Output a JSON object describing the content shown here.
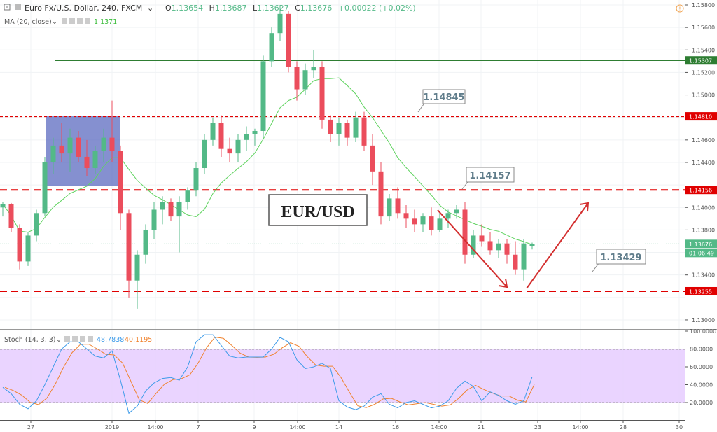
{
  "header": {
    "symbol": "Euro Fx/U.S. Dollar, 240, FXCM",
    "open_label": "O",
    "open": "1.13654",
    "high_label": "H",
    "high": "1.13687",
    "low_label": "L",
    "low": "1.13627",
    "close_label": "C",
    "close": "1.13676",
    "change": "+0.00022 (+0.02%)"
  },
  "ma": {
    "label": "MA (20, close)",
    "value": "1.1371"
  },
  "stoch": {
    "label": "Stoch (14, 3, 3)",
    "k_value": "48.7838",
    "d_value": "40.1195"
  },
  "price_axis": [
    "1.15800",
    "1.15600",
    "1.15400",
    "1.15200",
    "1.15000",
    "1.14600",
    "1.14400",
    "1.14000",
    "1.13800",
    "1.13400",
    "1.13000"
  ],
  "price_tags": {
    "green_line": "1.15307",
    "red1": "1.14810",
    "red2": "1.14156",
    "last": "1.13676",
    "countdown": "01:06:49",
    "red3": "1.13255"
  },
  "stoch_axis": [
    "100.0000",
    "80.0000",
    "60.0000",
    "40.0000",
    "20.0000"
  ],
  "time_axis": [
    "27",
    "2019",
    "14:00",
    "7",
    "9",
    "14:00",
    "14",
    "16",
    "14:00",
    "21",
    "23",
    "14:00",
    "28",
    "30"
  ],
  "annotations": {
    "callout1": "1.14845",
    "callout2": "1.14157",
    "callout3": "1.13429",
    "pair": "EUR/USD"
  },
  "colors": {
    "up": "#53b987",
    "down": "#eb4d5c",
    "ma": "#5fd35f",
    "support": "#e00000",
    "resistance": "#2e7d32",
    "stoch_k": "#3d9be9",
    "stoch_d": "#f0822d",
    "stoch_band": "#e6ccff"
  },
  "chart_data": {
    "type": "candlestick",
    "title": "Euro Fx/U.S. Dollar, 240, FXCM",
    "ylim": [
      1.129,
      1.1585
    ],
    "levels": {
      "resistance": 1.15307,
      "dashed": [
        1.1481,
        1.14156,
        1.13255
      ],
      "last": 1.13676
    },
    "ohlc": [
      [
        1.14,
        1.1405,
        1.1392,
        1.1403
      ],
      [
        1.1403,
        1.1404,
        1.1378,
        1.1382
      ],
      [
        1.1382,
        1.1385,
        1.1345,
        1.1352
      ],
      [
        1.1352,
        1.1378,
        1.1348,
        1.1375
      ],
      [
        1.1375,
        1.1398,
        1.137,
        1.1395
      ],
      [
        1.1395,
        1.1445,
        1.1392,
        1.144
      ],
      [
        1.144,
        1.1462,
        1.143,
        1.1455
      ],
      [
        1.1455,
        1.1475,
        1.144,
        1.1448
      ],
      [
        1.1448,
        1.147,
        1.1432,
        1.1462
      ],
      [
        1.1462,
        1.1468,
        1.144,
        1.1445
      ],
      [
        1.1445,
        1.146,
        1.1428,
        1.1435
      ],
      [
        1.1435,
        1.1455,
        1.143,
        1.145
      ],
      [
        1.145,
        1.147,
        1.144,
        1.1462
      ],
      [
        1.1462,
        1.1495,
        1.144,
        1.145
      ],
      [
        1.145,
        1.1455,
        1.138,
        1.1395
      ],
      [
        1.1395,
        1.1398,
        1.132,
        1.1335
      ],
      [
        1.1335,
        1.1362,
        1.131,
        1.1358
      ],
      [
        1.1358,
        1.1385,
        1.135,
        1.138
      ],
      [
        1.138,
        1.1405,
        1.1372,
        1.1398
      ],
      [
        1.1398,
        1.141,
        1.1385,
        1.1405
      ],
      [
        1.1405,
        1.1408,
        1.1388,
        1.1392
      ],
      [
        1.1392,
        1.141,
        1.136,
        1.1405
      ],
      [
        1.1405,
        1.1418,
        1.1398,
        1.1415
      ],
      [
        1.1415,
        1.144,
        1.141,
        1.1435
      ],
      [
        1.1435,
        1.1465,
        1.143,
        1.146
      ],
      [
        1.146,
        1.148,
        1.1455,
        1.1475
      ],
      [
        1.1475,
        1.1482,
        1.1445,
        1.1452
      ],
      [
        1.1452,
        1.1462,
        1.144,
        1.1448
      ],
      [
        1.1448,
        1.1465,
        1.144,
        1.146
      ],
      [
        1.146,
        1.1472,
        1.145,
        1.1465
      ],
      [
        1.1465,
        1.147,
        1.1455,
        1.1468
      ],
      [
        1.1468,
        1.1535,
        1.1462,
        1.153
      ],
      [
        1.153,
        1.156,
        1.1525,
        1.1555
      ],
      [
        1.1555,
        1.158,
        1.1548,
        1.1572
      ],
      [
        1.1572,
        1.1575,
        1.152,
        1.1525
      ],
      [
        1.1525,
        1.153,
        1.1495,
        1.1505
      ],
      [
        1.1505,
        1.1528,
        1.15,
        1.1522
      ],
      [
        1.1522,
        1.154,
        1.1515,
        1.1525
      ],
      [
        1.1525,
        1.153,
        1.147,
        1.1478
      ],
      [
        1.1478,
        1.1482,
        1.1458,
        1.1465
      ],
      [
        1.1465,
        1.148,
        1.1455,
        1.1475
      ],
      [
        1.1475,
        1.1478,
        1.1455,
        1.1462
      ],
      [
        1.1462,
        1.1485,
        1.1458,
        1.148
      ],
      [
        1.148,
        1.1485,
        1.145,
        1.1455
      ],
      [
        1.1455,
        1.1465,
        1.142,
        1.1432
      ],
      [
        1.1432,
        1.144,
        1.1385,
        1.1392
      ],
      [
        1.1392,
        1.1412,
        1.1388,
        1.1408
      ],
      [
        1.1408,
        1.1418,
        1.139,
        1.1395
      ],
      [
        1.1395,
        1.1402,
        1.1382,
        1.139
      ],
      [
        1.139,
        1.1398,
        1.1378,
        1.1385
      ],
      [
        1.1385,
        1.1395,
        1.1378,
        1.1392
      ],
      [
        1.1392,
        1.14,
        1.1375,
        1.138
      ],
      [
        1.138,
        1.1395,
        1.1378,
        1.139
      ],
      [
        1.139,
        1.1398,
        1.1382,
        1.1395
      ],
      [
        1.1395,
        1.1402,
        1.139,
        1.1398
      ],
      [
        1.1398,
        1.1405,
        1.135,
        1.1358
      ],
      [
        1.1358,
        1.138,
        1.1355,
        1.1375
      ],
      [
        1.1375,
        1.1385,
        1.1365,
        1.137
      ],
      [
        1.137,
        1.1378,
        1.1358,
        1.1362
      ],
      [
        1.1362,
        1.1372,
        1.1355,
        1.1368
      ],
      [
        1.1368,
        1.1372,
        1.135,
        1.1358
      ],
      [
        1.1358,
        1.137,
        1.134,
        1.1345
      ],
      [
        1.1345,
        1.1372,
        1.1335,
        1.1368
      ],
      [
        1.13654,
        1.13687,
        1.13627,
        1.13676
      ]
    ],
    "stoch_k": [
      37,
      30,
      18,
      13,
      22,
      40,
      60,
      80,
      88,
      88,
      80,
      72,
      70,
      78,
      45,
      8,
      16,
      33,
      42,
      47,
      48,
      45,
      60,
      88,
      96,
      96,
      84,
      72,
      70,
      71,
      71,
      71,
      80,
      93,
      88,
      68,
      58,
      60,
      64,
      58,
      22,
      15,
      12,
      16,
      26,
      30,
      18,
      14,
      20,
      22,
      18,
      14,
      16,
      22,
      36,
      44,
      38,
      22,
      32,
      28,
      22,
      18,
      22,
      48.78
    ],
    "stoch_ylim": [
      0,
      100
    ],
    "stoch_bands": [
      20,
      80
    ]
  }
}
